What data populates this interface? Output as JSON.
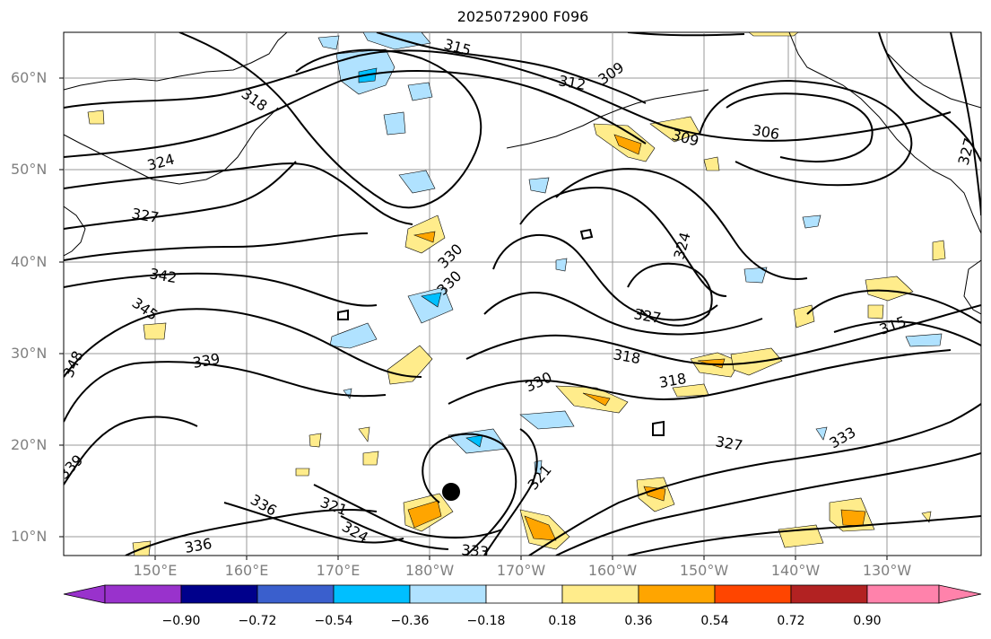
{
  "title": "2025072900 F096",
  "lat_labels": [
    "60°N",
    "50°N",
    "40°N",
    "30°N",
    "20°N",
    "10°N"
  ],
  "lon_labels": [
    "150°E",
    "160°E",
    "170°E",
    "180°W",
    "170°W",
    "160°W",
    "150°W",
    "140°W",
    "130°W"
  ],
  "contour_labels": [
    "315",
    "309",
    "318",
    "324",
    "327",
    "342",
    "345",
    "348",
    "339",
    "330",
    "336",
    "333",
    "324",
    "321",
    "327",
    "306",
    "318",
    "315",
    "330",
    "318",
    "327",
    "333",
    "321",
    "327",
    "324",
    "312"
  ],
  "colorbar": {
    "labels": [
      "−0.90",
      "−0.72",
      "−0.54",
      "−0.36",
      "−0.18",
      "0.18",
      "0.36",
      "0.54",
      "0.72",
      "0.90"
    ],
    "colors": [
      "#9932cc",
      "#00008b",
      "#3a5fcd",
      "#00bfff",
      "#b0e2ff",
      "#ffffff",
      "#ffec8b",
      "#ffa500",
      "#ff4500",
      "#b22222",
      "#ff82ab"
    ]
  }
}
